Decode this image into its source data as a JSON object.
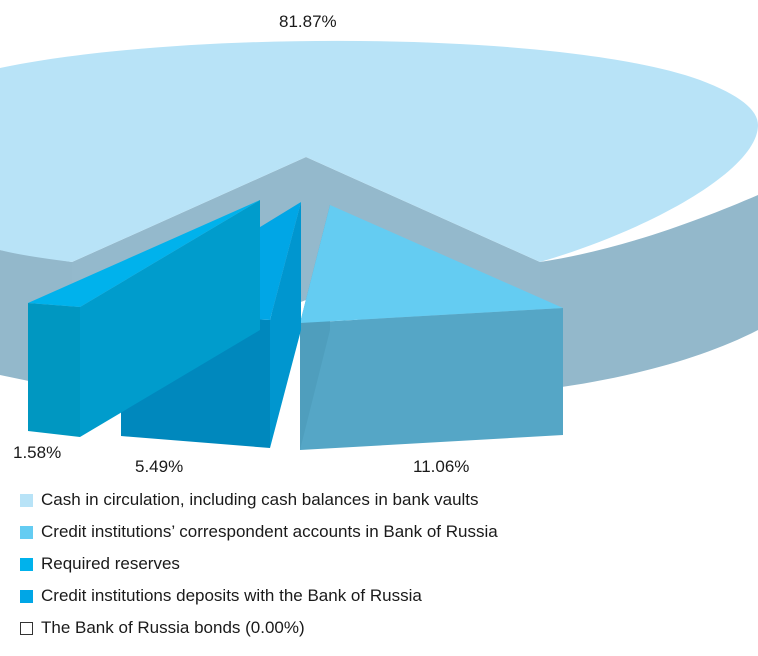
{
  "chart_data": {
    "type": "pie",
    "title": "",
    "slices": [
      {
        "label": "Cash in circulation, including cash balances in bank vaults",
        "value": 81.87,
        "value_label": "81.87%",
        "color": "#b8e3f7",
        "side_color": "#93b8cb"
      },
      {
        "label": "Credit institutions’ correspondent accounts in Bank of Russia",
        "value": 11.06,
        "value_label": "11.06%",
        "color": "#64ccf2",
        "side_color": "#55a6c6"
      },
      {
        "label": "Required reserves",
        "value": 1.58,
        "value_label": "1.58%",
        "color": "#00b2ec",
        "side_color": "#0097c1"
      },
      {
        "label": "Credit institutions deposits with the Bank of Russia",
        "value": 5.49,
        "value_label": "5.49%",
        "color": "#00a6e6",
        "side_color": "#0088bd"
      },
      {
        "label": "The Bank of Russia  bonds (0.00%)",
        "value": 0.0,
        "value_label": "",
        "color": "#ffffff",
        "side_color": "#ffffff"
      }
    ],
    "legend_position": "bottom-left"
  }
}
